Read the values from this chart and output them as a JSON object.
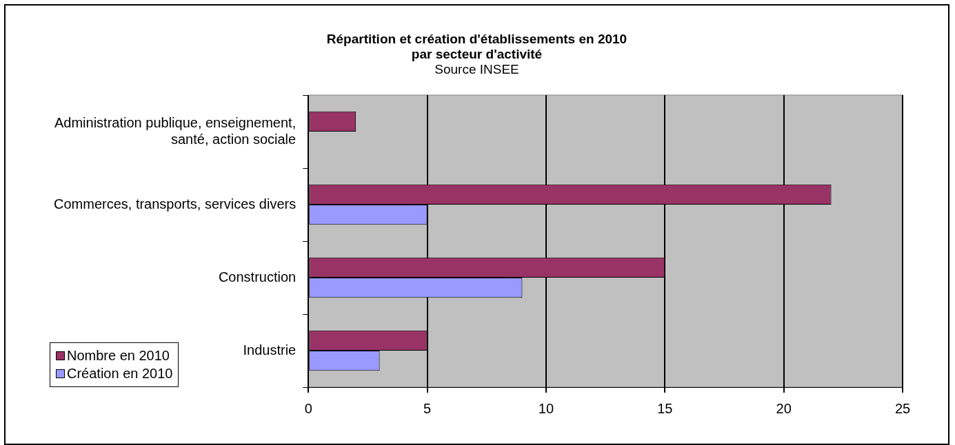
{
  "chart_data": {
    "type": "bar",
    "orientation": "horizontal",
    "title": "Répartition et création d'établissements  en 2010\npar secteur  d'activité",
    "subtitle": "Source INSEE",
    "categories": [
      "Administration publique, enseignement, santé, action sociale",
      "Commerces, transports, services divers",
      "Construction",
      "Industrie"
    ],
    "series": [
      {
        "name": "Nombre en 2010",
        "color": "#993366",
        "values": [
          2,
          22,
          15,
          5
        ]
      },
      {
        "name": "Création en 2010",
        "color": "#9999ff",
        "values": [
          null,
          5,
          9,
          3
        ]
      }
    ],
    "xlim": [
      0,
      25
    ],
    "xticks": [
      0,
      5,
      10,
      15,
      20,
      25
    ],
    "grid": "x",
    "legend": "bottom left"
  }
}
